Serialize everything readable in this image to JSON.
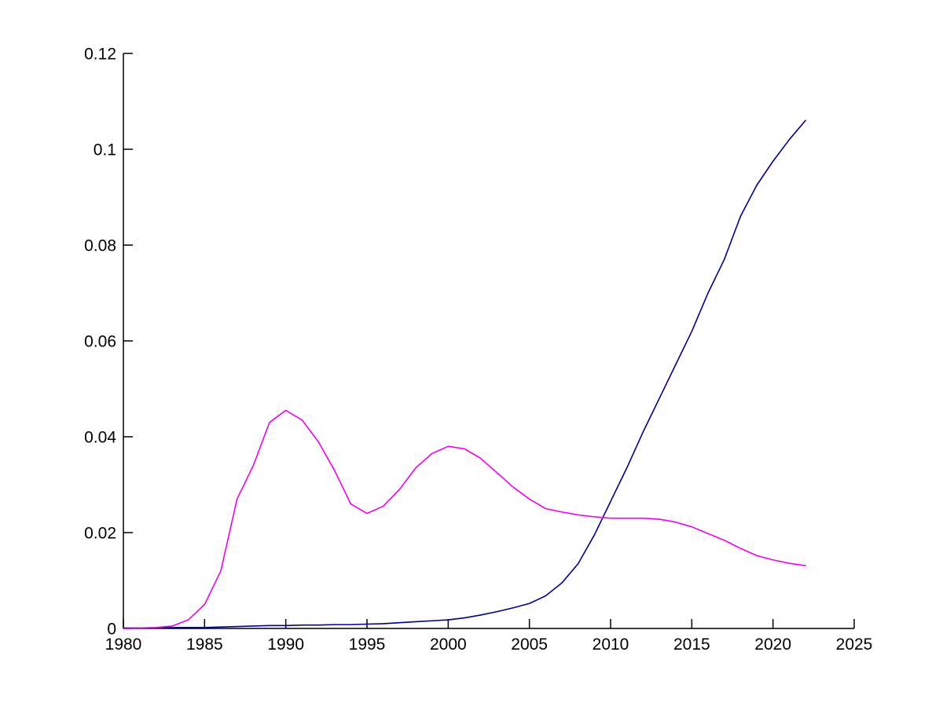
{
  "figure": {
    "background": "#ffffff",
    "title": ""
  },
  "chart_data": {
    "type": "line",
    "title": "",
    "xlabel": "",
    "ylabel": "",
    "xlim": [
      1980,
      2025
    ],
    "ylim": [
      0,
      0.12
    ],
    "grid": false,
    "legend": "none",
    "axis_color": "#000000",
    "x_ticks": [
      1980,
      1985,
      1990,
      1995,
      2000,
      2005,
      2010,
      2015,
      2020,
      2025
    ],
    "x_tick_labels": [
      "1980",
      "1985",
      "1990",
      "1995",
      "2000",
      "2005",
      "2010",
      "2015",
      "2020",
      "2025"
    ],
    "y_ticks": [
      0,
      0.02,
      0.04,
      0.06,
      0.08,
      0.1,
      0.12
    ],
    "y_tick_labels": [
      "0",
      "0.02",
      "0.04",
      "0.06",
      "0.08",
      "0.1",
      "0.12"
    ],
    "x": [
      1980,
      1981,
      1982,
      1983,
      1984,
      1985,
      1986,
      1987,
      1988,
      1989,
      1990,
      1991,
      1992,
      1993,
      1994,
      1995,
      1996,
      1997,
      1998,
      1999,
      2000,
      2001,
      2002,
      2003,
      2004,
      2005,
      2006,
      2007,
      2008,
      2009,
      2010,
      2011,
      2012,
      2013,
      2014,
      2015,
      2016,
      2017,
      2018,
      2019,
      2020,
      2021,
      2022
    ],
    "series": [
      {
        "name": "blue-line",
        "color": "#00008b",
        "values": [
          0.0001,
          0.0001,
          0.0001,
          0.0002,
          0.0002,
          0.0002,
          0.0003,
          0.0004,
          0.0005,
          0.0006,
          0.0006,
          0.0007,
          0.0007,
          0.0008,
          0.0008,
          0.0009,
          0.001,
          0.0012,
          0.0014,
          0.0016,
          0.0018,
          0.0022,
          0.0028,
          0.0035,
          0.0043,
          0.0052,
          0.0068,
          0.0095,
          0.0135,
          0.0195,
          0.0265,
          0.0335,
          0.041,
          0.048,
          0.055,
          0.062,
          0.07,
          0.077,
          0.086,
          0.0925,
          0.0975,
          0.102,
          0.106
        ]
      },
      {
        "name": "magenta-line",
        "color": "#ee00ee",
        "values": [
          0.0,
          0.0001,
          0.0002,
          0.0005,
          0.0018,
          0.005,
          0.012,
          0.027,
          0.034,
          0.043,
          0.0455,
          0.0435,
          0.039,
          0.033,
          0.026,
          0.024,
          0.0255,
          0.029,
          0.0335,
          0.0365,
          0.038,
          0.0375,
          0.0355,
          0.0325,
          0.0295,
          0.027,
          0.025,
          0.0243,
          0.0237,
          0.0233,
          0.023,
          0.023,
          0.023,
          0.0228,
          0.0222,
          0.0212,
          0.0198,
          0.0184,
          0.0167,
          0.0152,
          0.0143,
          0.0136,
          0.0131
        ]
      }
    ]
  }
}
